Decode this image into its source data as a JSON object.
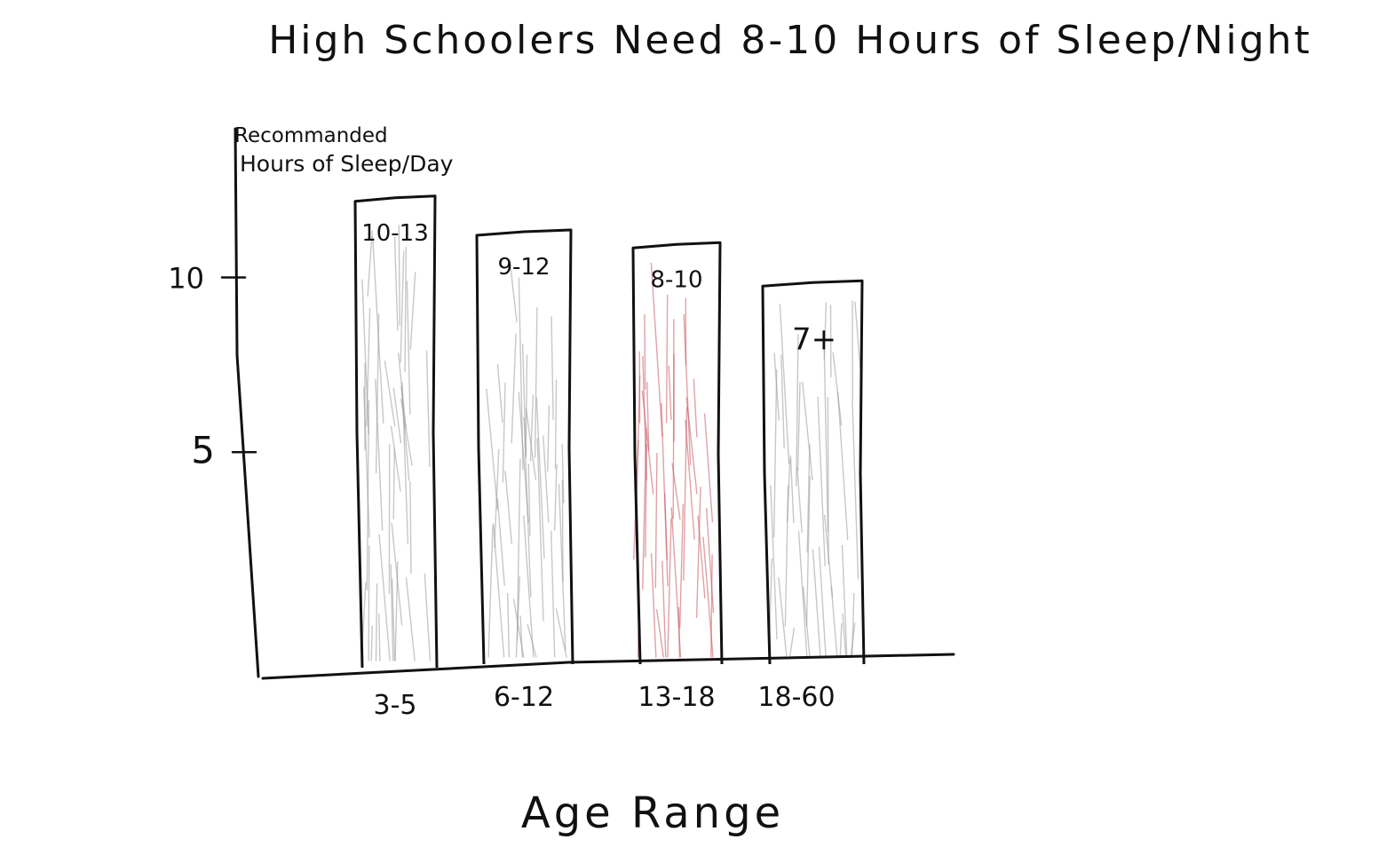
{
  "chart_data": {
    "type": "bar",
    "title": "High Schoolers Need 8-10 Hours of Sleep/Night",
    "ylabel_line1": "Recommanded",
    "ylabel_line2": "Hours of Sleep/Day",
    "xlabel": "Age Range",
    "categories": [
      "3-5",
      "6-12",
      "13-18",
      "18-60"
    ],
    "values": [
      11,
      10.2,
      9.9,
      9.0
    ],
    "bar_labels": [
      "10-13",
      "9-12",
      "8-10",
      "7+"
    ],
    "highlight_index": 2,
    "ylim": [
      0,
      12
    ],
    "yticks": [
      5,
      10
    ],
    "ytick_labels": [
      "5",
      "10"
    ],
    "grid": false,
    "colors": {
      "ink": "#111111",
      "shade_gray": "#9a9a9a",
      "shade_red": "#c8555f",
      "background": "#ffffff"
    }
  }
}
